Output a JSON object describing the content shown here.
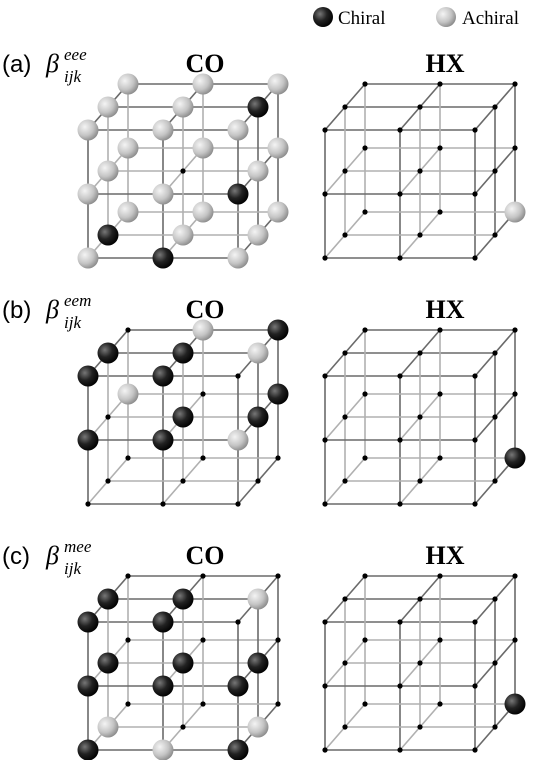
{
  "legend": {
    "items": [
      "Chiral",
      "Achiral"
    ]
  },
  "panels": [
    {
      "label": "(a)",
      "symbol": "β",
      "superscript": "eee",
      "subscript": "ijk",
      "left_title": "CO",
      "right_title": "HX"
    },
    {
      "label": "(b)",
      "symbol": "β",
      "superscript": "eem",
      "subscript": "ijk",
      "left_title": "CO",
      "right_title": "HX"
    },
    {
      "label": "(c)",
      "symbol": "β",
      "superscript": "mee",
      "subscript": "ijk",
      "left_title": "CO",
      "right_title": "HX"
    }
  ]
}
